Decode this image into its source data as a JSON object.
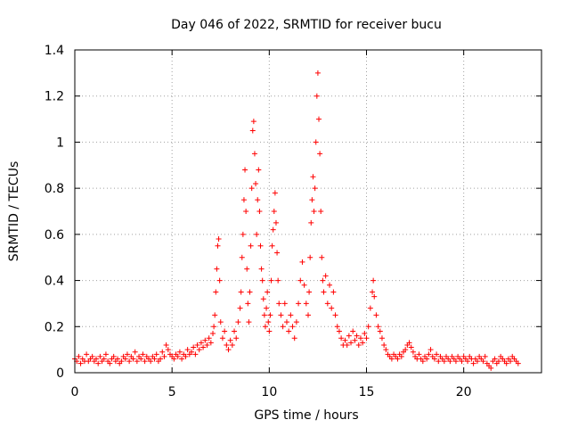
{
  "chart_data": {
    "type": "scatter",
    "title": "Day 046 of 2022, SRMTID for receiver bucu",
    "xlabel": "GPS time / hours",
    "ylabel": "SRMTID / TECUs",
    "xlim": [
      0,
      24
    ],
    "ylim": [
      0,
      1.4
    ],
    "xticks": [
      0,
      5,
      10,
      15,
      20
    ],
    "xtick_labels": [
      "0",
      "5",
      "10",
      "15",
      "20"
    ],
    "yticks": [
      0,
      0.2,
      0.4,
      0.6,
      0.8,
      1,
      1.2,
      1.4
    ],
    "ytick_labels": [
      "0",
      "0.2",
      "0.4",
      "0.6",
      "0.8",
      "1",
      "1.2",
      "1.4"
    ],
    "grid": true,
    "marker": "+",
    "color": "#ff0000",
    "series": [
      {
        "name": "SRMTID",
        "points": [
          [
            0.0,
            0.06
          ],
          [
            0.1,
            0.05
          ],
          [
            0.2,
            0.07
          ],
          [
            0.3,
            0.04
          ],
          [
            0.4,
            0.06
          ],
          [
            0.5,
            0.05
          ],
          [
            0.6,
            0.08
          ],
          [
            0.7,
            0.05
          ],
          [
            0.8,
            0.06
          ],
          [
            0.9,
            0.07
          ],
          [
            1.0,
            0.05
          ],
          [
            1.1,
            0.06
          ],
          [
            1.2,
            0.04
          ],
          [
            1.3,
            0.07
          ],
          [
            1.4,
            0.05
          ],
          [
            1.5,
            0.06
          ],
          [
            1.6,
            0.08
          ],
          [
            1.7,
            0.05
          ],
          [
            1.8,
            0.04
          ],
          [
            1.9,
            0.06
          ],
          [
            2.0,
            0.07
          ],
          [
            2.1,
            0.05
          ],
          [
            2.2,
            0.06
          ],
          [
            2.3,
            0.04
          ],
          [
            2.4,
            0.05
          ],
          [
            2.5,
            0.07
          ],
          [
            2.6,
            0.06
          ],
          [
            2.7,
            0.08
          ],
          [
            2.8,
            0.05
          ],
          [
            2.9,
            0.07
          ],
          [
            3.0,
            0.06
          ],
          [
            3.1,
            0.09
          ],
          [
            3.2,
            0.05
          ],
          [
            3.3,
            0.07
          ],
          [
            3.4,
            0.06
          ],
          [
            3.5,
            0.08
          ],
          [
            3.6,
            0.05
          ],
          [
            3.7,
            0.07
          ],
          [
            3.8,
            0.06
          ],
          [
            3.9,
            0.05
          ],
          [
            4.0,
            0.07
          ],
          [
            4.1,
            0.06
          ],
          [
            4.2,
            0.08
          ],
          [
            4.3,
            0.05
          ],
          [
            4.4,
            0.06
          ],
          [
            4.5,
            0.09
          ],
          [
            4.6,
            0.07
          ],
          [
            4.7,
            0.12
          ],
          [
            4.8,
            0.1
          ],
          [
            4.9,
            0.08
          ],
          [
            5.0,
            0.07
          ],
          [
            5.1,
            0.06
          ],
          [
            5.2,
            0.08
          ],
          [
            5.3,
            0.07
          ],
          [
            5.4,
            0.09
          ],
          [
            5.5,
            0.06
          ],
          [
            5.6,
            0.08
          ],
          [
            5.7,
            0.07
          ],
          [
            5.8,
            0.1
          ],
          [
            5.9,
            0.08
          ],
          [
            6.0,
            0.09
          ],
          [
            6.1,
            0.11
          ],
          [
            6.2,
            0.08
          ],
          [
            6.3,
            0.12
          ],
          [
            6.4,
            0.1
          ],
          [
            6.5,
            0.13
          ],
          [
            6.6,
            0.11
          ],
          [
            6.7,
            0.14
          ],
          [
            6.8,
            0.12
          ],
          [
            6.9,
            0.15
          ],
          [
            7.0,
            0.13
          ],
          [
            7.1,
            0.17
          ],
          [
            7.15,
            0.2
          ],
          [
            7.2,
            0.25
          ],
          [
            7.25,
            0.35
          ],
          [
            7.3,
            0.45
          ],
          [
            7.35,
            0.55
          ],
          [
            7.4,
            0.58
          ],
          [
            7.45,
            0.4
          ],
          [
            7.5,
            0.22
          ],
          [
            7.6,
            0.15
          ],
          [
            7.7,
            0.18
          ],
          [
            7.8,
            0.12
          ],
          [
            7.9,
            0.1
          ],
          [
            8.0,
            0.14
          ],
          [
            8.1,
            0.12
          ],
          [
            8.2,
            0.18
          ],
          [
            8.3,
            0.15
          ],
          [
            8.4,
            0.22
          ],
          [
            8.5,
            0.28
          ],
          [
            8.55,
            0.35
          ],
          [
            8.6,
            0.5
          ],
          [
            8.65,
            0.6
          ],
          [
            8.7,
            0.75
          ],
          [
            8.75,
            0.88
          ],
          [
            8.8,
            0.7
          ],
          [
            8.85,
            0.45
          ],
          [
            8.9,
            0.3
          ],
          [
            8.95,
            0.22
          ],
          [
            9.0,
            0.35
          ],
          [
            9.05,
            0.55
          ],
          [
            9.1,
            0.8
          ],
          [
            9.15,
            1.05
          ],
          [
            9.2,
            1.09
          ],
          [
            9.25,
            0.95
          ],
          [
            9.3,
            0.82
          ],
          [
            9.35,
            0.6
          ],
          [
            9.4,
            0.75
          ],
          [
            9.45,
            0.88
          ],
          [
            9.5,
            0.7
          ],
          [
            9.55,
            0.55
          ],
          [
            9.6,
            0.45
          ],
          [
            9.65,
            0.4
          ],
          [
            9.7,
            0.32
          ],
          [
            9.75,
            0.25
          ],
          [
            9.8,
            0.2
          ],
          [
            9.85,
            0.28
          ],
          [
            9.9,
            0.35
          ],
          [
            9.95,
            0.22
          ],
          [
            10.0,
            0.18
          ],
          [
            10.05,
            0.25
          ],
          [
            10.1,
            0.4
          ],
          [
            10.15,
            0.55
          ],
          [
            10.2,
            0.62
          ],
          [
            10.25,
            0.7
          ],
          [
            10.3,
            0.78
          ],
          [
            10.35,
            0.65
          ],
          [
            10.4,
            0.52
          ],
          [
            10.45,
            0.4
          ],
          [
            10.5,
            0.3
          ],
          [
            10.6,
            0.25
          ],
          [
            10.7,
            0.2
          ],
          [
            10.8,
            0.3
          ],
          [
            10.9,
            0.22
          ],
          [
            11.0,
            0.18
          ],
          [
            11.1,
            0.25
          ],
          [
            11.2,
            0.2
          ],
          [
            11.3,
            0.15
          ],
          [
            11.4,
            0.22
          ],
          [
            11.5,
            0.3
          ],
          [
            11.6,
            0.4
          ],
          [
            11.7,
            0.48
          ],
          [
            11.8,
            0.38
          ],
          [
            11.9,
            0.3
          ],
          [
            12.0,
            0.25
          ],
          [
            12.05,
            0.35
          ],
          [
            12.1,
            0.5
          ],
          [
            12.15,
            0.65
          ],
          [
            12.2,
            0.75
          ],
          [
            12.25,
            0.85
          ],
          [
            12.3,
            0.7
          ],
          [
            12.35,
            0.8
          ],
          [
            12.4,
            1.0
          ],
          [
            12.45,
            1.2
          ],
          [
            12.5,
            1.3
          ],
          [
            12.55,
            1.1
          ],
          [
            12.6,
            0.95
          ],
          [
            12.65,
            0.7
          ],
          [
            12.7,
            0.5
          ],
          [
            12.75,
            0.4
          ],
          [
            12.8,
            0.35
          ],
          [
            12.9,
            0.42
          ],
          [
            13.0,
            0.3
          ],
          [
            13.1,
            0.38
          ],
          [
            13.2,
            0.28
          ],
          [
            13.3,
            0.35
          ],
          [
            13.4,
            0.25
          ],
          [
            13.5,
            0.2
          ],
          [
            13.6,
            0.18
          ],
          [
            13.7,
            0.15
          ],
          [
            13.8,
            0.12
          ],
          [
            13.9,
            0.14
          ],
          [
            14.0,
            0.12
          ],
          [
            14.1,
            0.16
          ],
          [
            14.2,
            0.13
          ],
          [
            14.3,
            0.18
          ],
          [
            14.4,
            0.14
          ],
          [
            14.5,
            0.16
          ],
          [
            14.6,
            0.12
          ],
          [
            14.7,
            0.15
          ],
          [
            14.8,
            0.13
          ],
          [
            14.9,
            0.17
          ],
          [
            15.0,
            0.15
          ],
          [
            15.1,
            0.2
          ],
          [
            15.2,
            0.28
          ],
          [
            15.3,
            0.35
          ],
          [
            15.35,
            0.4
          ],
          [
            15.4,
            0.33
          ],
          [
            15.5,
            0.25
          ],
          [
            15.6,
            0.2
          ],
          [
            15.7,
            0.18
          ],
          [
            15.8,
            0.15
          ],
          [
            15.9,
            0.12
          ],
          [
            16.0,
            0.1
          ],
          [
            16.1,
            0.08
          ],
          [
            16.2,
            0.07
          ],
          [
            16.3,
            0.06
          ],
          [
            16.4,
            0.08
          ],
          [
            16.5,
            0.07
          ],
          [
            16.6,
            0.06
          ],
          [
            16.7,
            0.08
          ],
          [
            16.8,
            0.07
          ],
          [
            16.9,
            0.09
          ],
          [
            17.0,
            0.1
          ],
          [
            17.1,
            0.12
          ],
          [
            17.2,
            0.13
          ],
          [
            17.3,
            0.11
          ],
          [
            17.4,
            0.09
          ],
          [
            17.5,
            0.07
          ],
          [
            17.6,
            0.06
          ],
          [
            17.7,
            0.08
          ],
          [
            17.8,
            0.06
          ],
          [
            17.9,
            0.05
          ],
          [
            18.0,
            0.07
          ],
          [
            18.1,
            0.06
          ],
          [
            18.2,
            0.08
          ],
          [
            18.3,
            0.1
          ],
          [
            18.4,
            0.07
          ],
          [
            18.5,
            0.06
          ],
          [
            18.6,
            0.08
          ],
          [
            18.7,
            0.05
          ],
          [
            18.8,
            0.07
          ],
          [
            18.9,
            0.06
          ],
          [
            19.0,
            0.05
          ],
          [
            19.1,
            0.07
          ],
          [
            19.2,
            0.06
          ],
          [
            19.3,
            0.05
          ],
          [
            19.4,
            0.07
          ],
          [
            19.5,
            0.06
          ],
          [
            19.6,
            0.05
          ],
          [
            19.7,
            0.07
          ],
          [
            19.8,
            0.06
          ],
          [
            19.9,
            0.05
          ],
          [
            20.0,
            0.07
          ],
          [
            20.1,
            0.06
          ],
          [
            20.2,
            0.05
          ],
          [
            20.3,
            0.07
          ],
          [
            20.4,
            0.06
          ],
          [
            20.5,
            0.04
          ],
          [
            20.6,
            0.06
          ],
          [
            20.7,
            0.05
          ],
          [
            20.8,
            0.07
          ],
          [
            20.9,
            0.06
          ],
          [
            21.0,
            0.05
          ],
          [
            21.1,
            0.07
          ],
          [
            21.2,
            0.04
          ],
          [
            21.3,
            0.03
          ],
          [
            21.4,
            0.02
          ],
          [
            21.5,
            0.05
          ],
          [
            21.6,
            0.06
          ],
          [
            21.7,
            0.04
          ],
          [
            21.8,
            0.05
          ],
          [
            21.9,
            0.07
          ],
          [
            22.0,
            0.06
          ],
          [
            22.1,
            0.05
          ],
          [
            22.2,
            0.04
          ],
          [
            22.3,
            0.06
          ],
          [
            22.4,
            0.05
          ],
          [
            22.5,
            0.07
          ],
          [
            22.6,
            0.06
          ],
          [
            22.7,
            0.05
          ],
          [
            22.8,
            0.04
          ]
        ]
      }
    ]
  }
}
